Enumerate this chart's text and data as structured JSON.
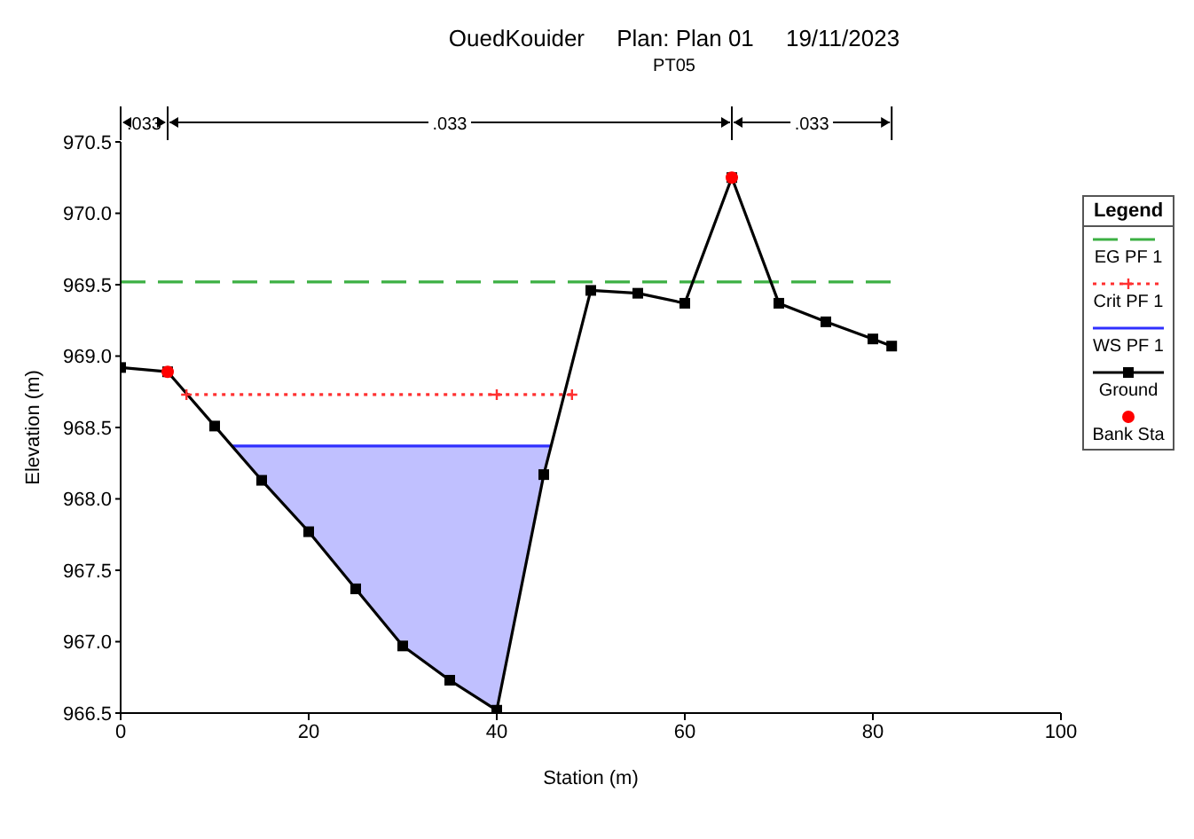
{
  "chart_data": {
    "type": "line",
    "title": "OuedKouider     Plan: Plan 01     19/11/2023",
    "subtitle": "PT05",
    "xlabel": "Station (m)",
    "ylabel": "Elevation (m)",
    "legend_title": "Legend",
    "legend": "right",
    "annotations": [
      ".033",
      ".033",
      ".033"
    ],
    "xlim": [
      0,
      100
    ],
    "xticks": [
      0,
      20,
      40,
      60,
      80,
      100
    ],
    "ylim": [
      966.5,
      970.5
    ],
    "yticks": [
      966.5,
      {
        "value": 967,
        "label": "967.0"
      },
      967.5,
      {
        "value": 968,
        "label": "968.0"
      },
      968.5,
      {
        "value": 969,
        "label": "969.0"
      },
      969.5,
      {
        "value": 970,
        "label": "970.0"
      },
      970.5
    ],
    "series": [
      {
        "name": "EG PF 1",
        "type": "line",
        "color": "#3cb043",
        "line_style": "dashed",
        "marker": "none",
        "x": [
          0,
          82
        ],
        "values": [
          969.52,
          969.52
        ]
      },
      {
        "name": "Crit PF 1",
        "color": "#ff3030",
        "line_style": "dotted",
        "marker": "cross",
        "x": [
          7,
          40,
          48
        ],
        "values": [
          968.73,
          968.73,
          968.73
        ]
      },
      {
        "name": "WS PF 1",
        "type": "line",
        "color": "#3030ff",
        "line_style": "solid",
        "marker": "none",
        "x": [
          11.8,
          15,
          20,
          25,
          30,
          35,
          40,
          45,
          45.8
        ],
        "values": [
          968.37,
          968.37,
          968.37,
          968.37,
          968.37,
          968.37,
          968.37,
          968.37,
          968.37
        ],
        "lower": [
          968.37,
          968.13,
          967.77,
          967.37,
          966.97,
          966.73,
          966.52,
          968.17,
          968.37
        ],
        "upper": [
          968.37,
          968.37,
          968.37,
          968.37,
          968.37,
          968.37,
          968.37,
          968.37,
          968.37
        ]
      },
      {
        "name": "Ground",
        "type": "line",
        "color": "#000000",
        "line_style": "solid",
        "marker": "square",
        "x": [
          0,
          5,
          10,
          15,
          20,
          25,
          30,
          35,
          40,
          45,
          50,
          55,
          60,
          65,
          70,
          75,
          80,
          82
        ],
        "values": [
          968.92,
          968.89,
          968.51,
          968.13,
          967.77,
          967.37,
          966.97,
          966.73,
          966.52,
          968.17,
          969.46,
          969.44,
          969.37,
          970.25,
          969.37,
          969.24,
          969.12,
          969.07
        ]
      },
      {
        "name": "Bank Sta",
        "type": "scatter",
        "color": "#ff0000",
        "marker": "circle",
        "x": [
          5,
          65
        ],
        "values": [
          968.89,
          970.25
        ]
      }
    ]
  }
}
